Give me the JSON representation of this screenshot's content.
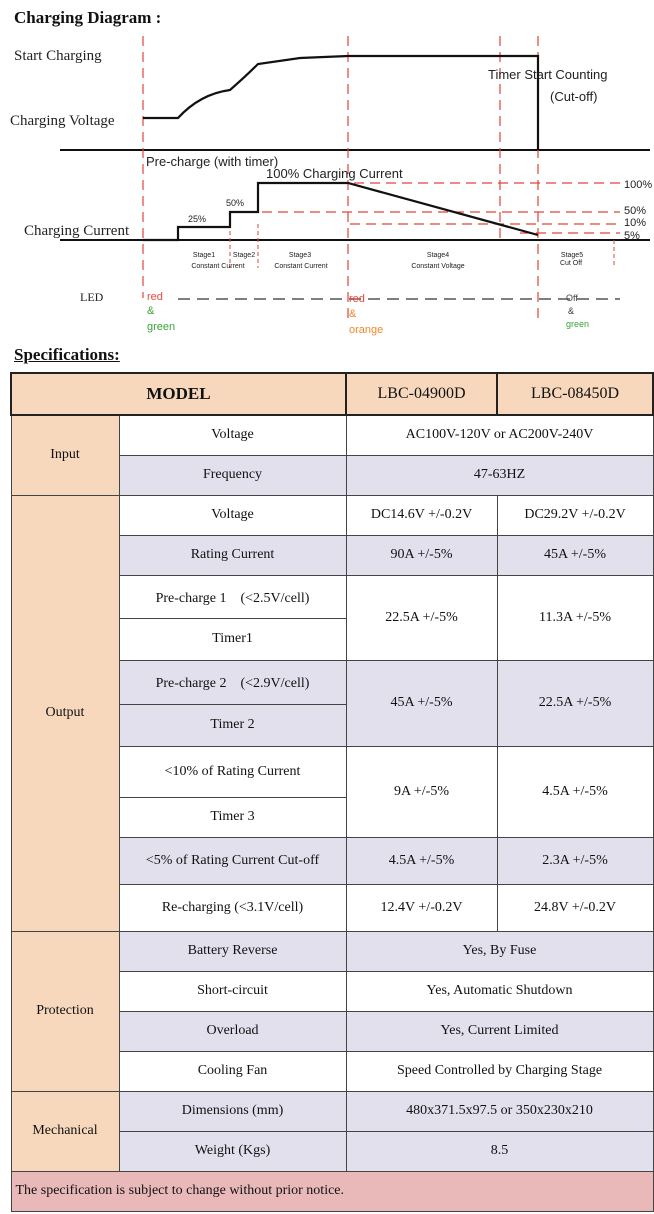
{
  "headings": {
    "diagram": "Charging Diagram :",
    "specifications": "Specifications:"
  },
  "diagram": {
    "labels": {
      "start_charging": "Start Charging",
      "charging_voltage": "Charging Voltage",
      "timer_start": "Timer Start Counting",
      "cut_off": "(Cut-off)",
      "pre_charge": "Pre-charge (with timer)",
      "full_current": "100% Charging Current",
      "charging_current": "Charging Current",
      "pct_25": "25%",
      "pct_50": "50%",
      "led": "LED"
    },
    "right_levels": [
      "100%",
      "50%",
      "10%",
      "5%"
    ],
    "stages": [
      {
        "name": "Stage1",
        "mode": "Constant Current"
      },
      {
        "name": "Stage2",
        "mode": ""
      },
      {
        "name": "Stage3",
        "mode": "Constant Current"
      },
      {
        "name": "Stage4",
        "mode": "Constant Voltage"
      },
      {
        "name": "Stage5",
        "mode": "Cut Off"
      }
    ],
    "led_states": [
      {
        "line1": "red",
        "amp": "&",
        "line2": "green"
      },
      {
        "line1": "red",
        "amp": "&",
        "line2": "orange"
      },
      {
        "line1": "Off",
        "amp": "&",
        "line2": "green"
      }
    ],
    "colors": {
      "stage_line": "#e0453a",
      "pct_line": "#e0453a",
      "led_red": "#e8493d",
      "led_green": "#3aa33a",
      "led_orange": "#f08a2c",
      "curve": "#111111"
    }
  },
  "table": {
    "header": {
      "model": "MODEL",
      "col1": "LBC-04900D",
      "col2": "LBC-08450D"
    },
    "input": {
      "group": "Input",
      "voltage_label": "Voltage",
      "voltage_value": "AC100V-120V or AC200V-240V",
      "frequency_label": "Frequency",
      "frequency_value": "47-63HZ"
    },
    "output": {
      "group": "Output",
      "voltage_label": "Voltage",
      "voltage_1": "DC14.6V +/-0.2V",
      "voltage_2": "DC29.2V +/-0.2V",
      "rating_label": "Rating Current",
      "rating_1": "90A +/-5%",
      "rating_2": "45A +/-5%",
      "pre1_label": "Pre-charge 1　(<2.5V/cell)",
      "timer1_label": "Timer1",
      "pre1_1": "22.5A +/-5%",
      "pre1_2": "11.3A +/-5%",
      "pre2_label": "Pre-charge 2　(<2.9V/cell)",
      "timer2_label": "Timer 2",
      "pre2_1": "45A +/-5%",
      "pre2_2": "22.5A +/-5%",
      "lt10_label": "<10% of Rating Current",
      "timer3_label": "Timer 3",
      "lt10_1": "9A +/-5%",
      "lt10_2": "4.5A +/-5%",
      "lt5_label": "<5% of Rating Current Cut-off",
      "lt5_1": "4.5A +/-5%",
      "lt5_2": "2.3A +/-5%",
      "recharge_label": "Re-charging (<3.1V/cell)",
      "recharge_1": "12.4V +/-0.2V",
      "recharge_2": "24.8V +/-0.2V"
    },
    "protection": {
      "group": "Protection",
      "reverse_label": "Battery Reverse",
      "reverse_value": "Yes, By Fuse",
      "short_label": "Short-circuit",
      "short_value": "Yes, Automatic Shutdown",
      "overload_label": "Overload",
      "overload_value": "Yes, Current Limited",
      "fan_label": "Cooling Fan",
      "fan_value": "Speed Controlled by Charging Stage"
    },
    "mechanical": {
      "group": "Mechanical",
      "dim_label": "Dimensions (mm)",
      "dim_value": "480x371.5x97.5 or 350x230x210",
      "weight_label": "Weight (Kgs)",
      "weight_value": "8.5"
    },
    "notice": "The specification is subject to change without prior notice."
  }
}
